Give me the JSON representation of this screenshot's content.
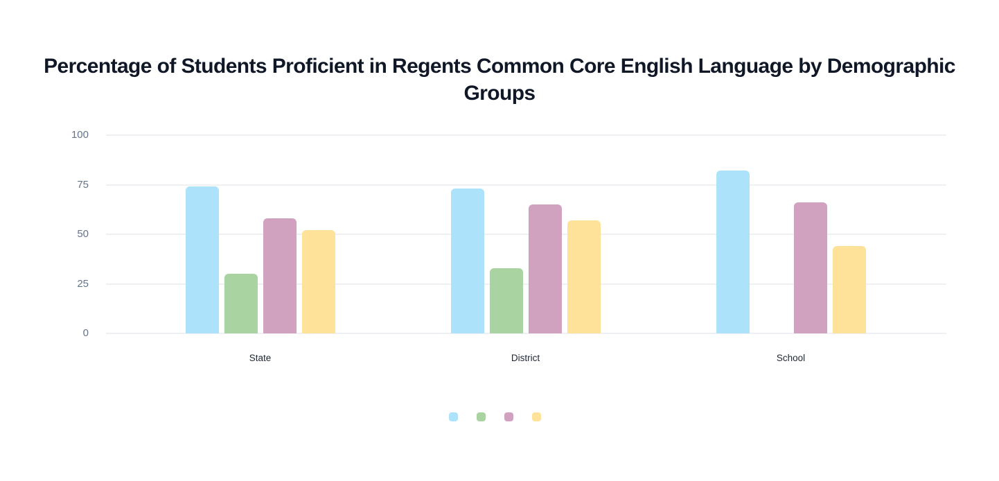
{
  "chart": {
    "title": "Percentage of Students Proficient in Regents Common Core English Language by Demographic Groups"
  },
  "chart_data": {
    "type": "bar",
    "title": "Percentage of Students Proficient in Regents Common Core English Language by Demographic Groups",
    "xlabel": "",
    "ylabel": "",
    "categories": [
      "State",
      "District",
      "School"
    ],
    "series": [
      {
        "name": "blue",
        "label": "",
        "color": "#ade2fb",
        "values": [
          74,
          73,
          82
        ]
      },
      {
        "name": "green",
        "label": "",
        "color": "#a9d3a0",
        "values": [
          30,
          33,
          null
        ]
      },
      {
        "name": "pink",
        "label": "",
        "color": "#d1a2c0",
        "values": [
          58,
          65,
          66
        ]
      },
      {
        "name": "yellow",
        "label": "",
        "color": "#ffe29a",
        "values": [
          52,
          57,
          44
        ]
      }
    ],
    "ylim": [
      0,
      100
    ],
    "yticks": [
      0,
      25,
      50,
      75,
      100
    ],
    "grid": true,
    "legend_position": "bottom",
    "legend_labels_visible": false
  },
  "colors": {
    "background": "#ffffff",
    "title_text": "#101828",
    "axis_tick_text": "#64748b",
    "category_text": "#1e2533",
    "gridline": "#eef0f4"
  }
}
